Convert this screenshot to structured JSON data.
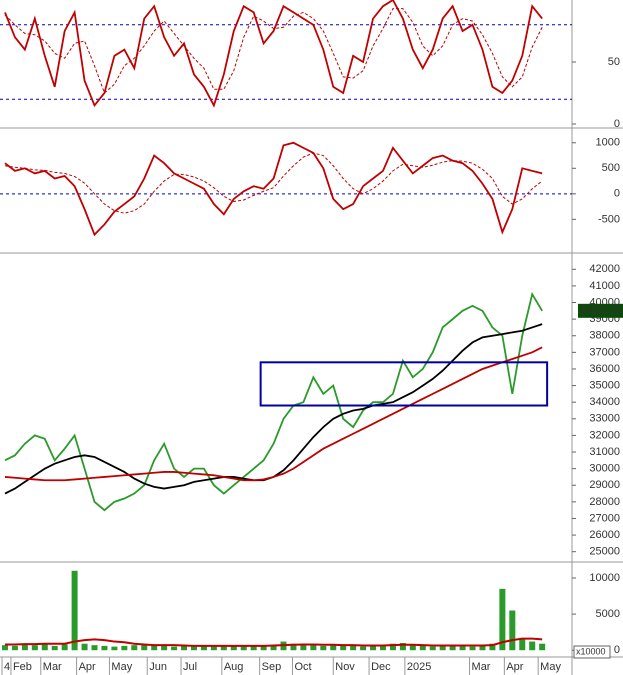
{
  "chart_data": [
    {
      "type": "line",
      "xlim": [
        -0.5,
        57
      ],
      "ylim": [
        0,
        100
      ],
      "yticks": [
        0,
        50
      ],
      "levels": [
        80,
        20
      ],
      "series": [
        {
          "color": "#c00000",
          "values": [
            90,
            70,
            60,
            85,
            55,
            30,
            75,
            90,
            35,
            15,
            25,
            55,
            60,
            45,
            85,
            95,
            70,
            55,
            65,
            40,
            30,
            15,
            40,
            75,
            95,
            90,
            65,
            75,
            95,
            90,
            85,
            80,
            60,
            30,
            25,
            55,
            50,
            85,
            95,
            100,
            85,
            60,
            45,
            60,
            85,
            95,
            75,
            80,
            60,
            30,
            25,
            35,
            55,
            95,
            85
          ]
        },
        {
          "color": "#c00000",
          "dashed": true,
          "values": [
            88,
            80,
            73,
            72,
            67,
            57,
            53,
            65,
            67,
            47,
            25,
            32,
            47,
            53,
            63,
            75,
            83,
            73,
            63,
            53,
            45,
            28,
            28,
            43,
            70,
            87,
            83,
            77,
            78,
            87,
            90,
            85,
            75,
            57,
            38,
            37,
            43,
            63,
            77,
            93,
            93,
            82,
            63,
            55,
            63,
            80,
            85,
            83,
            72,
            57,
            38,
            30,
            38,
            62,
            78
          ]
        }
      ]
    },
    {
      "type": "line",
      "xlim": [
        -0.5,
        57
      ],
      "ylim": [
        -1100,
        1250
      ],
      "yticks": [
        -500,
        0,
        500,
        1000
      ],
      "levels": [
        0
      ],
      "series": [
        {
          "color": "#c00000",
          "values": [
            600,
            450,
            500,
            400,
            450,
            300,
            350,
            150,
            -300,
            -800,
            -600,
            -350,
            -200,
            -50,
            300,
            750,
            600,
            400,
            300,
            200,
            100,
            -200,
            -400,
            -100,
            50,
            150,
            100,
            300,
            950,
            1000,
            900,
            800,
            500,
            -100,
            -300,
            -200,
            150,
            300,
            450,
            900,
            650,
            400,
            550,
            700,
            750,
            650,
            600,
            450,
            200,
            -100,
            -750,
            -300,
            500,
            450,
            400
          ]
        },
        {
          "color": "#c00000",
          "dashed": true,
          "values": [
            550,
            520,
            500,
            470,
            460,
            420,
            400,
            340,
            210,
            0,
            -200,
            -330,
            -380,
            -330,
            -200,
            50,
            250,
            380,
            380,
            330,
            250,
            120,
            -50,
            -150,
            -120,
            -30,
            50,
            120,
            350,
            550,
            720,
            800,
            750,
            550,
            300,
            100,
            0,
            100,
            250,
            450,
            580,
            550,
            520,
            560,
            620,
            650,
            640,
            600,
            480,
            300,
            -50,
            -200,
            -100,
            100,
            250
          ]
        }
      ]
    },
    {
      "type": "line",
      "xlim": [
        -0.5,
        57
      ],
      "ylim": [
        24500,
        42800
      ],
      "yticks": [
        25000,
        26000,
        27000,
        28000,
        29000,
        30000,
        31000,
        32000,
        33000,
        34000,
        35000,
        36000,
        37000,
        38000,
        39000,
        40000,
        41000,
        42000
      ],
      "series": [
        {
          "color": "#2a9a2a",
          "values": [
            30500,
            30800,
            31500,
            32000,
            31800,
            30500,
            31200,
            32000,
            30000,
            28000,
            27500,
            28000,
            28200,
            28500,
            29000,
            30500,
            31500,
            30000,
            29500,
            30000,
            30000,
            29000,
            28500,
            29000,
            29500,
            30000,
            30500,
            31500,
            33000,
            33800,
            34000,
            35500,
            34500,
            35000,
            33000,
            32500,
            33500,
            34000,
            34000,
            34500,
            36500,
            35500,
            36000,
            37000,
            38500,
            39000,
            39500,
            39800,
            39500,
            38500,
            38000,
            34500,
            38000,
            40500,
            39500
          ]
        },
        {
          "color": "#000000",
          "values": [
            28500,
            28800,
            29200,
            29600,
            30000,
            30300,
            30500,
            30700,
            30800,
            30700,
            30400,
            30100,
            29800,
            29400,
            29100,
            28900,
            28800,
            28900,
            29000,
            29200,
            29300,
            29400,
            29500,
            29500,
            29400,
            29300,
            29300,
            29500,
            29900,
            30500,
            31200,
            31900,
            32500,
            33000,
            33300,
            33500,
            33600,
            33800,
            33900,
            34000,
            34300,
            34600,
            35000,
            35400,
            35900,
            36500,
            37100,
            37600,
            37900,
            38000,
            38100,
            38200,
            38300,
            38500,
            38700
          ]
        },
        {
          "color": "#c00000",
          "values": [
            29500,
            29450,
            29400,
            29350,
            29300,
            29300,
            29300,
            29350,
            29400,
            29450,
            29500,
            29550,
            29600,
            29650,
            29700,
            29750,
            29800,
            29800,
            29750,
            29700,
            29650,
            29600,
            29500,
            29400,
            29300,
            29300,
            29350,
            29500,
            29700,
            30000,
            30400,
            30800,
            31200,
            31500,
            31800,
            32100,
            32400,
            32700,
            33000,
            33300,
            33600,
            33900,
            34200,
            34500,
            34800,
            35100,
            35400,
            35700,
            36000,
            36200,
            36400,
            36600,
            36800,
            37000,
            37300
          ]
        }
      ],
      "box": {
        "x": [
          25.7,
          54.5
        ],
        "y": [
          33800,
          36400
        ],
        "color": "#0000a0"
      },
      "last_price": {
        "value": 39500,
        "label": "39500.00"
      }
    },
    {
      "type": "bar",
      "xlim": [
        -0.5,
        57
      ],
      "ylim": [
        -800,
        11800
      ],
      "yticks": [
        0,
        5000,
        10000
      ],
      "unit_label": "x10000",
      "color": "#2a9a2a",
      "values": [
        700,
        600,
        800,
        700,
        900,
        600,
        800,
        11000,
        900,
        700,
        600,
        500,
        600,
        700,
        800,
        600,
        700,
        500,
        600,
        500,
        600,
        500,
        600,
        700,
        500,
        600,
        600,
        700,
        1200,
        900,
        800,
        700,
        600,
        800,
        700,
        600,
        500,
        600,
        700,
        900,
        1000,
        700,
        600,
        500,
        600,
        700,
        600,
        500,
        600,
        900,
        8500,
        5500,
        1500,
        1200,
        900
      ],
      "line": {
        "color": "#c00000",
        "values": [
          800,
          800,
          850,
          850,
          900,
          900,
          900,
          1200,
          1400,
          1500,
          1400,
          1200,
          1100,
          900,
          800,
          700,
          700,
          700,
          650,
          600,
          600,
          600,
          600,
          600,
          600,
          600,
          600,
          650,
          700,
          750,
          800,
          800,
          750,
          750,
          700,
          700,
          650,
          650,
          650,
          700,
          750,
          750,
          700,
          650,
          650,
          650,
          650,
          650,
          650,
          700,
          1100,
          1400,
          1600,
          1600,
          1500
        ]
      },
      "xticks": [
        {
          "value": -0.3,
          "label": "4"
        },
        {
          "value": 0.6,
          "label": "Feb"
        },
        {
          "value": 3.6,
          "label": "Mar"
        },
        {
          "value": 7.2,
          "label": "Apr"
        },
        {
          "value": 10.5,
          "label": "May"
        },
        {
          "value": 14.3,
          "label": "Jun"
        },
        {
          "value": 17.7,
          "label": "Jul"
        },
        {
          "value": 21.8,
          "label": "Aug"
        },
        {
          "value": 25.6,
          "label": "Sep"
        },
        {
          "value": 28.9,
          "label": "Oct"
        },
        {
          "value": 33.0,
          "label": "Nov"
        },
        {
          "value": 36.6,
          "label": "Dec"
        },
        {
          "value": 40.2,
          "label": "2025"
        },
        {
          "value": 46.7,
          "label": "Mar"
        },
        {
          "value": 50.2,
          "label": "Apr"
        },
        {
          "value": 53.6,
          "label": "May"
        }
      ]
    }
  ]
}
